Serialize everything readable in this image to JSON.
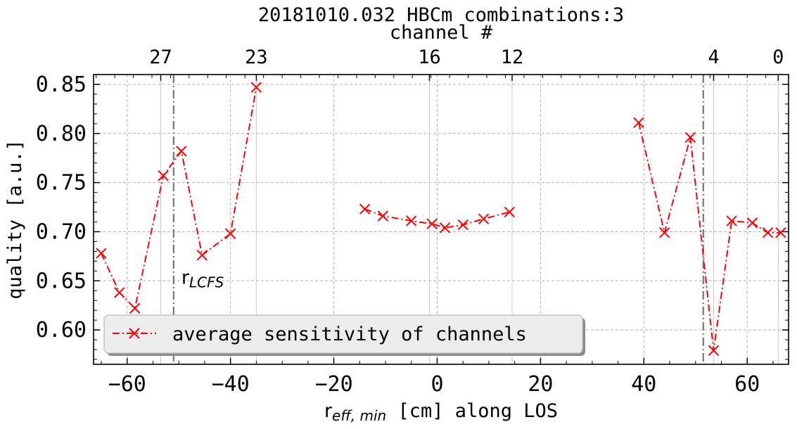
{
  "chart_data": {
    "type": "line",
    "title": "20181010.032 HBCm combinations:3",
    "top_axis_label": "channel #",
    "top_axis_ticks": [
      {
        "label": "27",
        "x": -53.5
      },
      {
        "label": "23",
        "x": -35.0
      },
      {
        "label": "16",
        "x": -1.5
      },
      {
        "label": "12",
        "x": 14.5
      },
      {
        "label": "4",
        "x": 53.5
      },
      {
        "label": "0",
        "x": 66.0
      }
    ],
    "xlabel_main": "r",
    "xlabel_sub": "eff, min",
    "xlabel_rest": " [cm] along LOS",
    "ylabel": "quality [a.u.]",
    "xlim": [
      -66.5,
      68
    ],
    "ylim": [
      0.565,
      0.86
    ],
    "x_ticks": [
      -60,
      -40,
      -20,
      0,
      20,
      40,
      60
    ],
    "x_tick_labels": [
      "−60",
      "−40",
      "−20",
      "0",
      "20",
      "40",
      "60"
    ],
    "y_ticks": [
      0.6,
      0.65,
      0.7,
      0.75,
      0.8,
      0.85
    ],
    "y_tick_labels": [
      "0.60",
      "0.65",
      "0.70",
      "0.75",
      "0.80",
      "0.85"
    ],
    "grid": true,
    "lcfs_lines": [
      -51.0,
      51.5
    ],
    "lcfs_annotation": {
      "main": "r",
      "sub": "LCFS",
      "x": -49.5,
      "y": 0.647
    },
    "legend": {
      "label": "average sensitivity of channels",
      "placement": "lower-left"
    },
    "series": [
      {
        "name": "average sensitivity of channels",
        "color": "#ff0000",
        "segments": [
          [
            [
              -65.0,
              0.678
            ],
            [
              -61.5,
              0.638
            ],
            [
              -58.5,
              0.622
            ],
            [
              -53.0,
              0.757
            ],
            [
              -49.5,
              0.782
            ],
            [
              -45.5,
              0.676
            ],
            [
              -40.0,
              0.698
            ],
            [
              -35.0,
              0.847
            ]
          ],
          [
            [
              -14.0,
              0.723
            ],
            [
              -10.5,
              0.716
            ],
            [
              -5.0,
              0.711
            ],
            [
              -1.0,
              0.708
            ],
            [
              1.5,
              0.704
            ],
            [
              5.0,
              0.707
            ],
            [
              9.0,
              0.713
            ],
            [
              14.0,
              0.72
            ]
          ],
          [
            [
              39.0,
              0.811
            ],
            [
              44.0,
              0.699
            ],
            [
              49.0,
              0.796
            ],
            [
              53.5,
              0.579
            ],
            [
              57.0,
              0.711
            ],
            [
              61.0,
              0.709
            ],
            [
              64.0,
              0.699
            ],
            [
              66.5,
              0.699
            ]
          ]
        ]
      }
    ]
  }
}
